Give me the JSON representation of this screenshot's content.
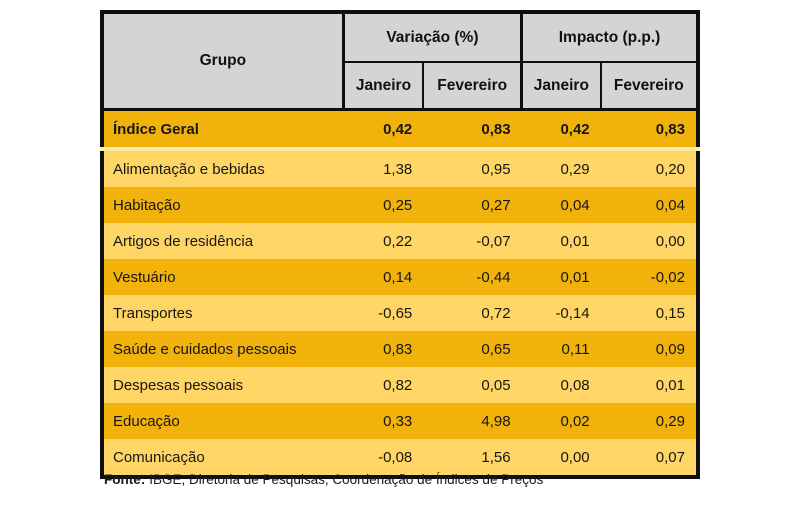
{
  "table": {
    "corner_label": "Grupo",
    "group_headers": [
      "Variação (%)",
      "Impacto (p.p.)"
    ],
    "sub_headers": [
      "Janeiro",
      "Fevereiro",
      "Janeiro",
      "Fevereiro"
    ],
    "rows": [
      {
        "group": "Índice Geral",
        "values": [
          "0,42",
          "0,83",
          "0,42",
          "0,83"
        ],
        "emphasis": true
      },
      {
        "group": "Alimentação e bebidas",
        "values": [
          "1,38",
          "0,95",
          "0,29",
          "0,20"
        ],
        "emphasis": false
      },
      {
        "group": "Habitação",
        "values": [
          "0,25",
          "0,27",
          "0,04",
          "0,04"
        ],
        "emphasis": false
      },
      {
        "group": "Artigos de residência",
        "values": [
          "0,22",
          "-0,07",
          "0,01",
          "0,00"
        ],
        "emphasis": false
      },
      {
        "group": "Vestuário",
        "values": [
          "0,14",
          "-0,44",
          "0,01",
          "-0,02"
        ],
        "emphasis": false
      },
      {
        "group": "Transportes",
        "values": [
          "-0,65",
          "0,72",
          "-0,14",
          "0,15"
        ],
        "emphasis": false
      },
      {
        "group": "Saúde e cuidados pessoais",
        "values": [
          "0,83",
          "0,65",
          "0,11",
          "0,09"
        ],
        "emphasis": false
      },
      {
        "group": "Despesas pessoais",
        "values": [
          "0,82",
          "0,05",
          "0,08",
          "0,01"
        ],
        "emphasis": false
      },
      {
        "group": "Educação",
        "values": [
          "0,33",
          "4,98",
          "0,02",
          "0,29"
        ],
        "emphasis": false
      },
      {
        "group": "Comunicação",
        "values": [
          "-0,08",
          "1,56",
          "0,00",
          "0,07"
        ],
        "emphasis": false
      }
    ]
  },
  "footer": {
    "source_label": "Fonte:",
    "source_text": "IBGE, Diretoria de Pesquisas, Coordenação de Índices de Preços"
  },
  "colors": {
    "row_dark": "#f1b20c",
    "row_light": "#ffd666",
    "header_bg": "#d4d4d4",
    "border": "#0e0e0e",
    "total_row_separator": "#ffe9a8"
  },
  "chart_data": {
    "type": "table",
    "title": "",
    "categories": [
      "Índice Geral",
      "Alimentação e bebidas",
      "Habitação",
      "Artigos de residência",
      "Vestuário",
      "Transportes",
      "Saúde e cuidados pessoais",
      "Despesas pessoais",
      "Educação",
      "Comunicação"
    ],
    "series": [
      {
        "name": "Variação (%) - Janeiro",
        "values": [
          0.42,
          1.38,
          0.25,
          0.22,
          0.14,
          -0.65,
          0.83,
          0.82,
          0.33,
          -0.08
        ]
      },
      {
        "name": "Variação (%) - Fevereiro",
        "values": [
          0.83,
          0.95,
          0.27,
          -0.07,
          -0.44,
          0.72,
          0.65,
          0.05,
          4.98,
          1.56
        ]
      },
      {
        "name": "Impacto (p.p.) - Janeiro",
        "values": [
          0.42,
          0.29,
          0.04,
          0.01,
          0.01,
          -0.14,
          0.11,
          0.08,
          0.02,
          0.0
        ]
      },
      {
        "name": "Impacto (p.p.) - Fevereiro",
        "values": [
          0.83,
          0.2,
          0.04,
          0.0,
          -0.02,
          0.15,
          0.09,
          0.01,
          0.29,
          0.07
        ]
      }
    ],
    "source": "Fonte: IBGE, Diretoria de Pesquisas, Coordenação de Índices de Preços"
  }
}
